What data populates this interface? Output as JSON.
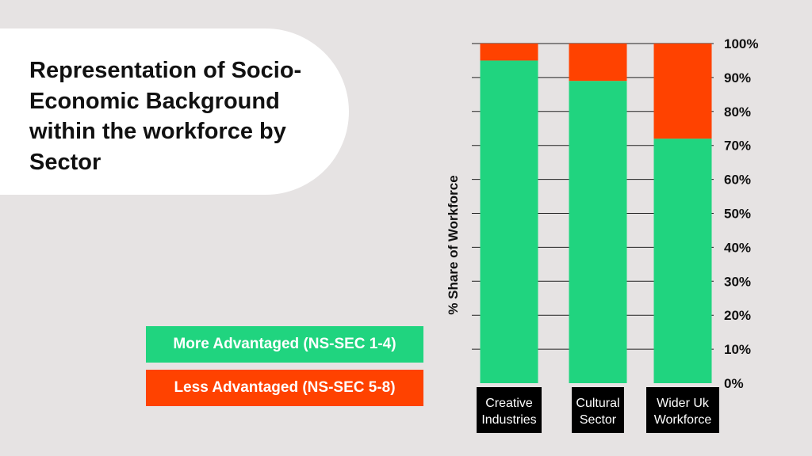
{
  "title": "Representation of Socio-Economic Background within the workforce by Sector",
  "colors": {
    "more_advantaged": "#20d47f",
    "less_advantaged": "#ff4200",
    "background": "#e6e3e3",
    "label_box": "#000000"
  },
  "legend": [
    {
      "label": "More Advantaged (NS-SEC 1-4)",
      "color": "#20d47f"
    },
    {
      "label": "Less Advantaged (NS-SEC 5-8)",
      "color": "#ff4200"
    }
  ],
  "chart_data": {
    "type": "bar",
    "stacked": true,
    "categories": [
      [
        "Creative",
        "Industries"
      ],
      [
        "Cultural",
        "Sector"
      ],
      [
        "Wider Uk",
        "Workforce"
      ]
    ],
    "series": [
      {
        "name": "More Advantaged (NS-SEC 1-4)",
        "values": [
          95,
          89,
          72
        ]
      },
      {
        "name": "Less Advantaged (NS-SEC 5-8)",
        "values": [
          5,
          11,
          28
        ]
      }
    ],
    "ylabel": "% Share of Workforce",
    "ylim": [
      0,
      100
    ],
    "yticks": [
      "0%",
      "10%",
      "20%",
      "30%",
      "40%",
      "50%",
      "60%",
      "70%",
      "80%",
      "90%",
      "100%"
    ],
    "y_axis_side": "right",
    "grid": true
  }
}
